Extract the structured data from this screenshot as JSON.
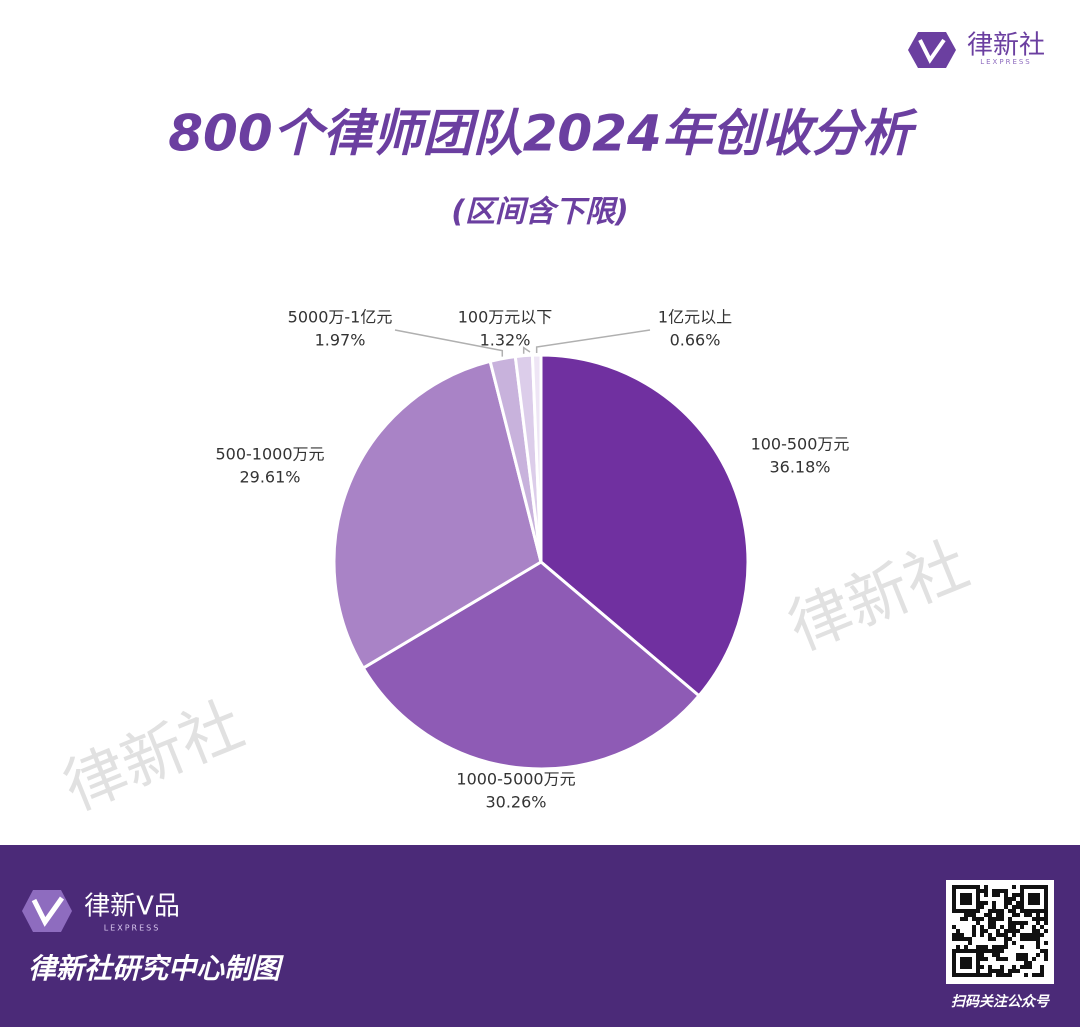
{
  "logo": {
    "name": "律新社",
    "sub": "LEXPRESS"
  },
  "watermark": "律新社",
  "chart_data": {
    "type": "pie",
    "title": "800个律师团队2024年创收分析",
    "subtitle": "(区间含下限)",
    "categories": [
      "100-500万元",
      "1000-5000万元",
      "500-1000万元",
      "5000万-1亿元",
      "100万元以下",
      "1亿元以上"
    ],
    "values": [
      36.18,
      30.26,
      29.61,
      1.97,
      1.32,
      0.66
    ],
    "value_labels": [
      "36.18%",
      "30.26%",
      "29.61%",
      "1.97%",
      "1.32%",
      "0.66%"
    ],
    "colors": [
      "#7030a0",
      "#8e5bb5",
      "#a983c6",
      "#c8b2dc",
      "#dccdea",
      "#eee5f5"
    ]
  },
  "footer": {
    "brand": "律新V品",
    "brand_sub": "LEXPRESS",
    "credit": "律新社研究中心制图",
    "qr_caption": "扫码关注公众号"
  }
}
